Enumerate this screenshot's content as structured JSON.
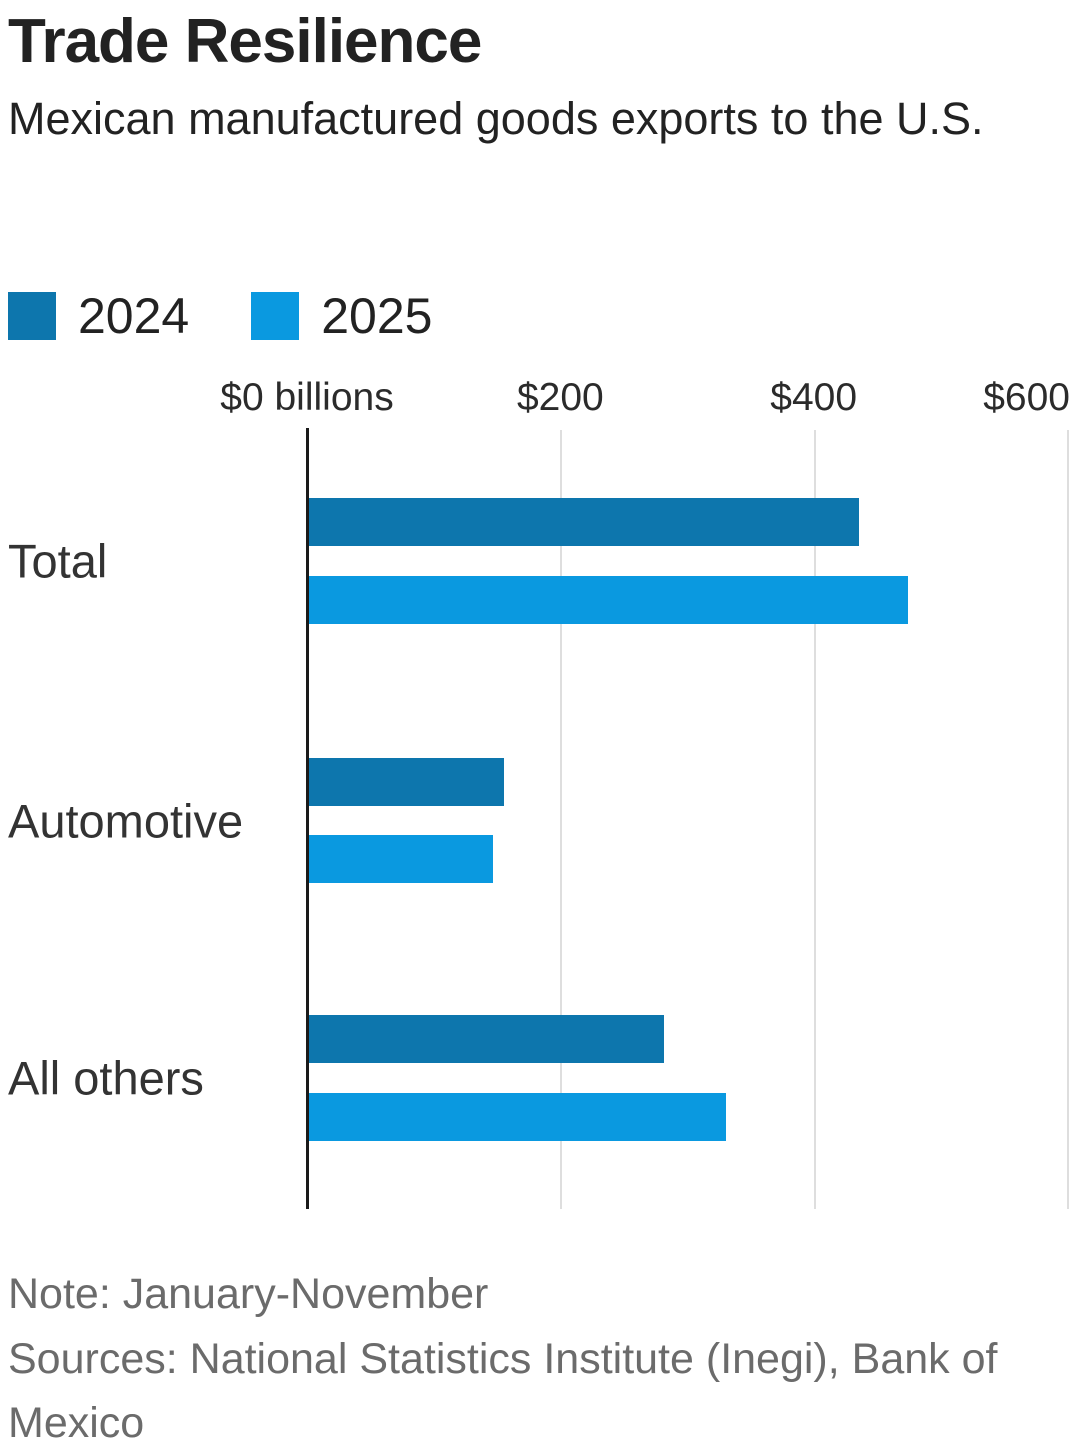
{
  "header": {
    "title": "Trade Resilience",
    "subtitle": "Mexican manufactured goods exports to the U.S."
  },
  "legend": [
    {
      "label": "2024",
      "color": "#0d76ad"
    },
    {
      "label": "2025",
      "color": "#0a99e0"
    }
  ],
  "chart_data": {
    "type": "bar",
    "orientation": "horizontal",
    "title": "Trade Resilience",
    "subtitle": "Mexican manufactured goods exports to the U.S.",
    "unit": "$ billions",
    "categories": [
      "Total",
      "Automotive",
      "All others"
    ],
    "series": [
      {
        "name": "2024",
        "color": "#0d76ad",
        "values": [
          434,
          154,
          280
        ]
      },
      {
        "name": "2025",
        "color": "#0a99e0",
        "values": [
          473,
          145,
          329
        ]
      }
    ],
    "x_ticks": [
      {
        "value": 0,
        "label": "$0 billions"
      },
      {
        "value": 200,
        "label": "$200"
      },
      {
        "value": 400,
        "label": "$400"
      },
      {
        "value": 600,
        "label": "$600"
      }
    ],
    "xlim": [
      0,
      600
    ],
    "grid": true,
    "legend_position": "top-left"
  },
  "notes": {
    "note": "Note: January-November",
    "sources": "Sources: National Statistics Institute (Inegi), Bank of Mexico",
    "sources_lines": [
      "Sources: National Statistics Institute (Inegi), Bank of",
      "Mexico"
    ]
  }
}
